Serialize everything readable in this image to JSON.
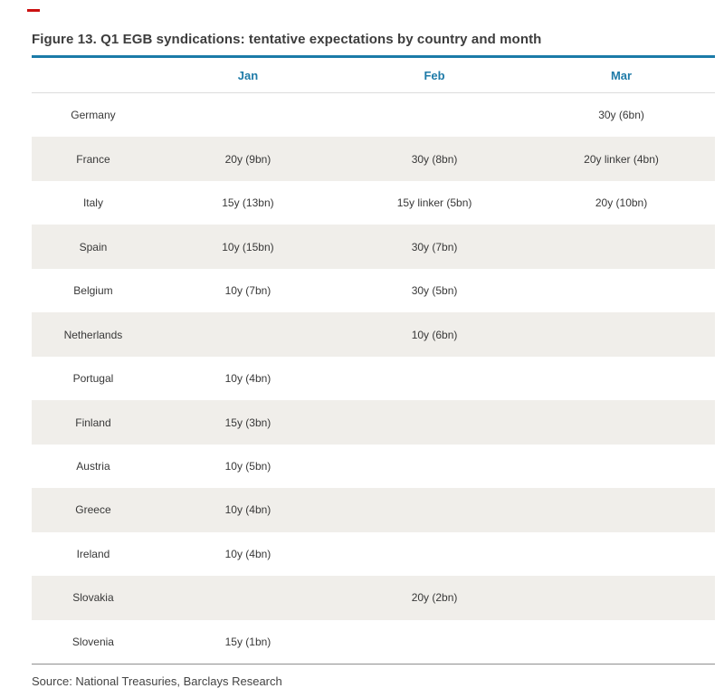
{
  "annotation": {
    "red_dash_color": "#cc1111"
  },
  "figure": {
    "title": "Figure 13. Q1 EGB syndications: tentative expectations by country and month",
    "source": "Source: National Treasuries, Barclays Research"
  },
  "table": {
    "columns": [
      "",
      "Jan",
      "Feb",
      "Mar"
    ],
    "rows": [
      {
        "country": "Germany",
        "jan": "",
        "feb": "",
        "mar": "30y (6bn)"
      },
      {
        "country": "France",
        "jan": "20y (9bn)",
        "feb": "30y (8bn)",
        "mar": "20y linker (4bn)"
      },
      {
        "country": "Italy",
        "jan": "15y (13bn)",
        "feb": "15y linker (5bn)",
        "mar": "20y (10bn)"
      },
      {
        "country": "Spain",
        "jan": "10y (15bn)",
        "feb": "30y (7bn)",
        "mar": ""
      },
      {
        "country": "Belgium",
        "jan": "10y (7bn)",
        "feb": "30y (5bn)",
        "mar": ""
      },
      {
        "country": "Netherlands",
        "jan": "",
        "feb": "10y (6bn)",
        "mar": ""
      },
      {
        "country": "Portugal",
        "jan": "10y (4bn)",
        "feb": "",
        "mar": ""
      },
      {
        "country": "Finland",
        "jan": "15y (3bn)",
        "feb": "",
        "mar": ""
      },
      {
        "country": "Austria",
        "jan": "10y (5bn)",
        "feb": "",
        "mar": ""
      },
      {
        "country": "Greece",
        "jan": "10y (4bn)",
        "feb": "",
        "mar": ""
      },
      {
        "country": "Ireland",
        "jan": "10y (4bn)",
        "feb": "",
        "mar": ""
      },
      {
        "country": "Slovakia",
        "jan": "",
        "feb": "20y (2bn)",
        "mar": ""
      },
      {
        "country": "Slovenia",
        "jan": "15y (1bn)",
        "feb": "",
        "mar": ""
      }
    ]
  },
  "colors": {
    "accent_blue": "#1b7ba8",
    "header_text_blue": "#1f7ba8",
    "row_shade": "#f0eeea",
    "title_text": "#3d3d3d",
    "body_text": "#383838"
  }
}
